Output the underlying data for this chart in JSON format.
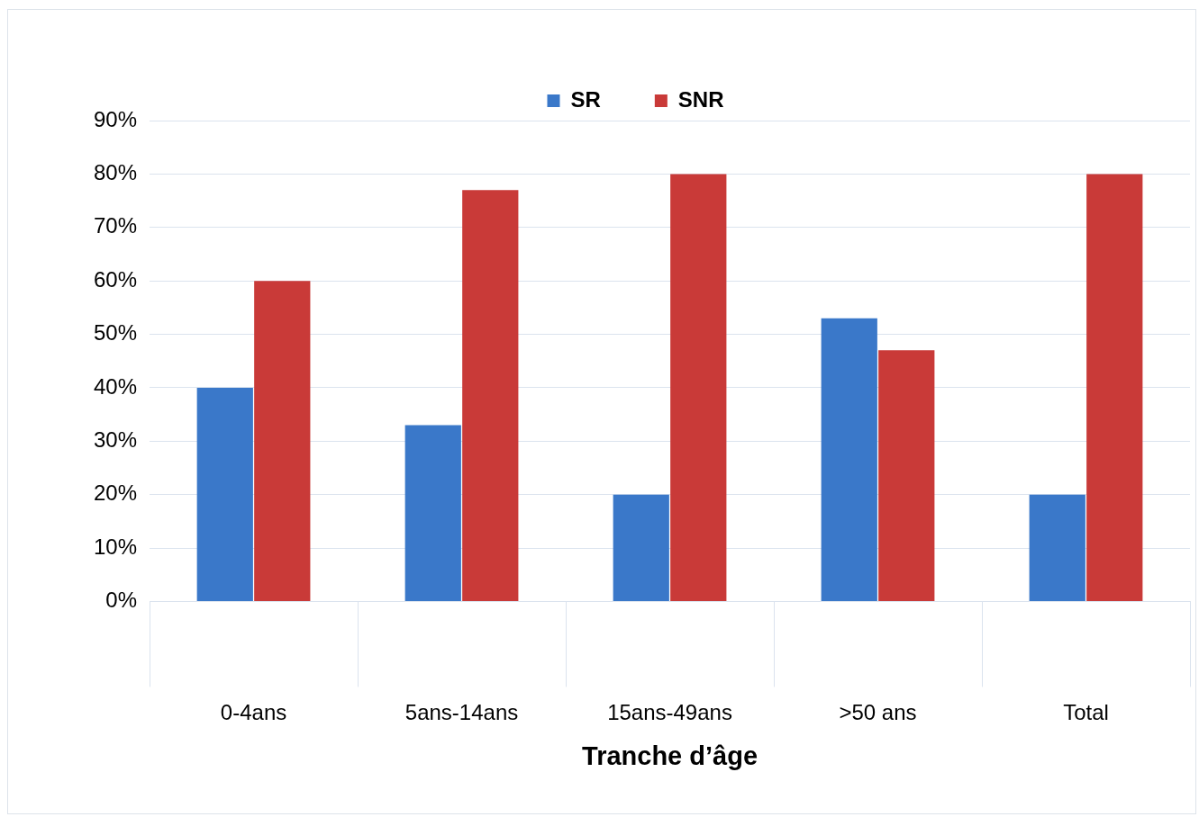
{
  "chart_data": {
    "type": "bar",
    "xlabel": "Tranche d’âge",
    "categories": [
      "0-4ans",
      "5ans-14ans",
      "15ans-49ans",
      ">50 ans",
      "Total"
    ],
    "series": [
      {
        "name": "SR",
        "color": "#3a78c9",
        "values": [
          40,
          33,
          20,
          53,
          20
        ]
      },
      {
        "name": "SNR",
        "color": "#c93a38",
        "values": [
          60,
          77,
          80,
          47,
          80
        ]
      }
    ],
    "ylim": [
      0,
      90
    ],
    "yticks": [
      {
        "value": 0,
        "label": "0%"
      },
      {
        "value": 10,
        "label": "10%"
      },
      {
        "value": 20,
        "label": "20%"
      },
      {
        "value": 30,
        "label": "30%"
      },
      {
        "value": 40,
        "label": "40%"
      },
      {
        "value": 50,
        "label": "50%"
      },
      {
        "value": 60,
        "label": "60%"
      },
      {
        "value": 70,
        "label": "70%"
      },
      {
        "value": 80,
        "label": "80%"
      },
      {
        "value": 90,
        "label": "90%"
      }
    ],
    "grid": "y",
    "legend": "top"
  }
}
